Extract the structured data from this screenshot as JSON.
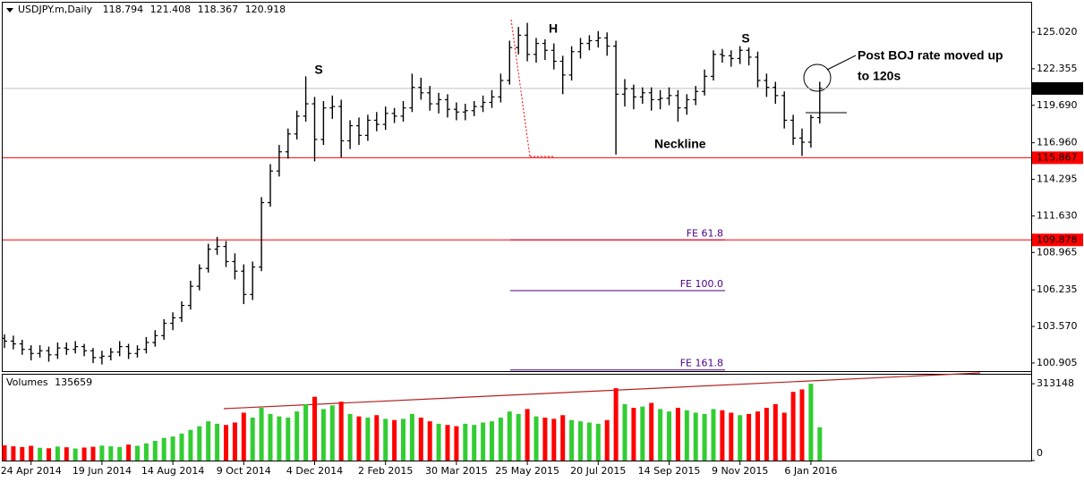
{
  "chart_data": {
    "type": "ohlc",
    "title": "USDJPY.m,Daily",
    "ohlc": [
      [
        102.7,
        103.0,
        102.0,
        102.5
      ],
      [
        102.5,
        102.9,
        101.9,
        102.3
      ],
      [
        102.3,
        102.6,
        101.5,
        101.9
      ],
      [
        101.9,
        102.2,
        101.1,
        101.6
      ],
      [
        101.6,
        102.2,
        101.3,
        101.8
      ],
      [
        101.8,
        102.1,
        101.0,
        101.5
      ],
      [
        101.5,
        102.4,
        101.2,
        102.0
      ],
      [
        102.0,
        102.4,
        101.5,
        101.9
      ],
      [
        101.9,
        102.5,
        101.6,
        102.1
      ],
      [
        102.1,
        102.3,
        101.4,
        101.8
      ],
      [
        101.8,
        102.0,
        100.9,
        101.3
      ],
      [
        101.3,
        101.8,
        100.8,
        101.4
      ],
      [
        101.4,
        102.0,
        101.1,
        101.7
      ],
      [
        101.7,
        102.5,
        101.4,
        102.1
      ],
      [
        102.1,
        102.3,
        101.2,
        101.6
      ],
      [
        101.6,
        102.2,
        101.3,
        101.9
      ],
      [
        101.9,
        102.8,
        101.6,
        102.4
      ],
      [
        102.4,
        103.3,
        102.1,
        102.9
      ],
      [
        102.9,
        104.1,
        102.6,
        103.8
      ],
      [
        103.8,
        104.6,
        103.3,
        104.2
      ],
      [
        104.2,
        105.4,
        103.9,
        105.1
      ],
      [
        105.1,
        106.9,
        104.8,
        106.5
      ],
      [
        106.5,
        108.1,
        106.2,
        107.8
      ],
      [
        107.8,
        109.6,
        107.5,
        109.2
      ],
      [
        109.2,
        110.1,
        108.8,
        109.4
      ],
      [
        109.4,
        109.8,
        107.9,
        108.3
      ],
      [
        108.3,
        108.9,
        107.0,
        107.6
      ],
      [
        107.6,
        108.1,
        105.2,
        105.9
      ],
      [
        105.9,
        108.3,
        105.5,
        107.9
      ],
      [
        107.9,
        113.0,
        107.6,
        112.6
      ],
      [
        112.6,
        115.4,
        112.3,
        114.9
      ],
      [
        114.9,
        116.8,
        114.5,
        116.3
      ],
      [
        116.3,
        118.0,
        115.8,
        117.6
      ],
      [
        117.6,
        119.3,
        117.2,
        118.9
      ],
      [
        118.9,
        121.8,
        118.5,
        119.8
      ],
      [
        119.8,
        120.3,
        115.6,
        117.2
      ],
      [
        117.2,
        120.0,
        116.8,
        119.5
      ],
      [
        119.5,
        120.4,
        118.7,
        119.6
      ],
      [
        119.6,
        120.1,
        115.9,
        117.1
      ],
      [
        117.1,
        118.6,
        116.5,
        118.2
      ],
      [
        118.2,
        118.8,
        116.8,
        117.5
      ],
      [
        117.5,
        119.0,
        117.1,
        118.6
      ],
      [
        118.6,
        119.2,
        117.8,
        118.3
      ],
      [
        118.3,
        119.6,
        117.9,
        119.1
      ],
      [
        119.1,
        119.5,
        118.4,
        118.9
      ],
      [
        118.9,
        120.0,
        118.5,
        119.5
      ],
      [
        119.5,
        122.0,
        119.2,
        121.0
      ],
      [
        121.0,
        121.7,
        120.1,
        120.6
      ],
      [
        120.6,
        121.1,
        119.3,
        119.8
      ],
      [
        119.8,
        120.6,
        119.1,
        120.1
      ],
      [
        120.1,
        120.5,
        118.8,
        119.4
      ],
      [
        119.4,
        119.9,
        118.6,
        119.2
      ],
      [
        119.2,
        119.8,
        118.6,
        119.3
      ],
      [
        119.3,
        120.0,
        118.9,
        119.6
      ],
      [
        119.6,
        120.4,
        119.2,
        119.9
      ],
      [
        119.9,
        120.8,
        119.5,
        120.3
      ],
      [
        120.3,
        122.0,
        119.9,
        121.5
      ],
      [
        121.5,
        124.4,
        121.2,
        123.9
      ],
      [
        123.9,
        125.4,
        123.4,
        124.8
      ],
      [
        124.8,
        125.7,
        122.9,
        123.4
      ],
      [
        123.4,
        124.6,
        122.8,
        124.2
      ],
      [
        124.2,
        124.5,
        123.0,
        123.7
      ],
      [
        123.7,
        124.2,
        122.3,
        122.9
      ],
      [
        122.9,
        123.3,
        120.5,
        121.9
      ],
      [
        121.9,
        124.0,
        121.5,
        123.6
      ],
      [
        123.6,
        124.6,
        123.1,
        124.2
      ],
      [
        124.2,
        124.8,
        123.7,
        124.4
      ],
      [
        124.4,
        125.1,
        123.9,
        124.6
      ],
      [
        124.6,
        125.0,
        123.3,
        124.0
      ],
      [
        124.0,
        124.4,
        116.1,
        120.5
      ],
      [
        120.5,
        121.6,
        119.6,
        120.9
      ],
      [
        120.9,
        121.2,
        119.4,
        120.3
      ],
      [
        120.3,
        121.0,
        119.8,
        120.6
      ],
      [
        120.6,
        121.0,
        119.3,
        120.1
      ],
      [
        120.1,
        120.8,
        119.4,
        120.2
      ],
      [
        120.2,
        121.0,
        119.7,
        120.4
      ],
      [
        120.4,
        120.8,
        118.5,
        119.5
      ],
      [
        119.5,
        120.5,
        119.0,
        120.1
      ],
      [
        120.1,
        121.1,
        119.7,
        120.7
      ],
      [
        120.7,
        122.3,
        120.4,
        121.8
      ],
      [
        121.8,
        123.7,
        121.5,
        123.4
      ],
      [
        123.4,
        123.8,
        122.8,
        123.3
      ],
      [
        123.3,
        123.7,
        122.5,
        123.1
      ],
      [
        123.1,
        124.0,
        122.7,
        123.7
      ],
      [
        123.7,
        123.9,
        122.6,
        123.2
      ],
      [
        123.2,
        123.6,
        121.0,
        121.5
      ],
      [
        121.5,
        122.0,
        120.3,
        121.0
      ],
      [
        121.0,
        121.4,
        119.8,
        120.4
      ],
      [
        120.4,
        120.7,
        118.0,
        118.6
      ],
      [
        118.6,
        119.0,
        116.8,
        117.3
      ],
      [
        117.3,
        118.0,
        116.0,
        117.0
      ],
      [
        117.0,
        119.0,
        116.6,
        118.8
      ],
      [
        118.794,
        121.408,
        118.367,
        120.918
      ]
    ],
    "color": "#000000",
    "ylim": [
      100.38,
      127.17
    ],
    "yticks": [
      {
        "value": 125.02,
        "label": "125.020"
      },
      122.355,
      {
        "value": 119.69,
        "label": "119.690"
      },
      {
        "value": 116.96,
        "label": "116.960"
      },
      114.295,
      {
        "value": 111.63,
        "label": "111.630"
      },
      108.965,
      106.235,
      {
        "value": 103.57,
        "label": "103.570"
      },
      100.905
    ],
    "levels": [
      115.867,
      109.878
    ],
    "level_color": "#ff0000",
    "xlabels": [
      "24 Apr 2014",
      "19 Jun 2014",
      "14 Aug 2014",
      "9 Oct 2014",
      "4 Dec 2014",
      "2 Feb 2015",
      "30 Mar 2015",
      "25 May 2015",
      "20 Jul 2015",
      "14 Sep 2015",
      "9 Nov 2015",
      "6 Jan 2016"
    ],
    "annotations": {
      "left_shoulder": "S",
      "head": "H",
      "right_shoulder": "S",
      "neckline": "Neckline",
      "boj_note": [
        "Post BOJ rate moved up",
        "to 120s"
      ]
    },
    "fibonacci": [
      {
        "label": "FE 61.8",
        "value": 109.878
      },
      {
        "label": "FE 100.0",
        "value": 106.18
      },
      {
        "label": "FE 161.8",
        "value": 100.4
      }
    ],
    "fib_color": "#4b0082",
    "volume_title": "Volumes",
    "volumes": [
      62000,
      58000,
      55000,
      60000,
      52000,
      50000,
      57000,
      54000,
      49000,
      53000,
      56000,
      61000,
      58000,
      55000,
      65000,
      60000,
      70000,
      80000,
      92000,
      98000,
      110000,
      125000,
      140000,
      160000,
      150000,
      145000,
      155000,
      195000,
      175000,
      215000,
      190000,
      180000,
      175000,
      200000,
      230000,
      260000,
      210000,
      225000,
      240000,
      190000,
      180000,
      175000,
      185000,
      170000,
      165000,
      170000,
      190000,
      175000,
      160000,
      150000,
      145000,
      140000,
      150000,
      145000,
      155000,
      160000,
      175000,
      200000,
      190000,
      210000,
      180000,
      175000,
      170000,
      185000,
      165000,
      160000,
      155000,
      150000,
      165000,
      295000,
      230000,
      215000,
      220000,
      235000,
      210000,
      200000,
      215000,
      205000,
      195000,
      190000,
      210000,
      205000,
      195000,
      185000,
      190000,
      200000,
      215000,
      230000,
      195000,
      280000,
      290000,
      313148,
      135659
    ],
    "volume_ylim": [
      0,
      350000
    ],
    "volume_yticks": [
      313148,
      0
    ],
    "volume_up_color": "#32cd32",
    "volume_down_color": "#ff0000"
  }
}
